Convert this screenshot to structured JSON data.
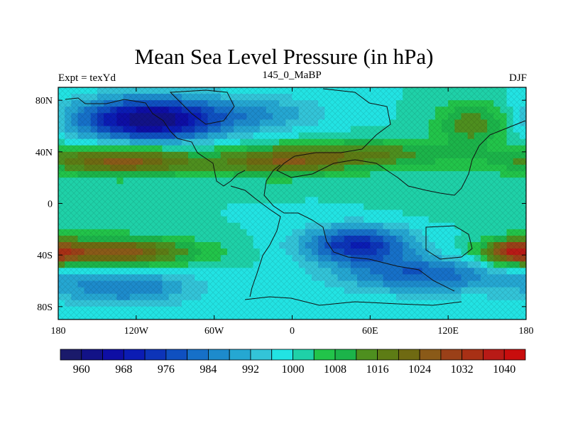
{
  "chart_data": {
    "type": "heatmap",
    "title": "Mean Sea Level Pressure (in hPa)",
    "subtitle_left": "Expt = texYd",
    "subtitle_center": "145_0_MaBP",
    "subtitle_right": "DJF",
    "x_ticks": [
      "180",
      "120W",
      "60W",
      "0",
      "60E",
      "120E",
      "180"
    ],
    "x_tick_values": [
      -180,
      -120,
      -60,
      0,
      60,
      120,
      180
    ],
    "y_ticks": [
      "80N",
      "40N",
      "0",
      "40S",
      "80S"
    ],
    "y_tick_values": [
      80,
      40,
      0,
      -40,
      -80
    ],
    "xlim": [
      -180,
      180
    ],
    "ylim": [
      -90,
      90
    ],
    "colorbar": {
      "levels": [
        956,
        960,
        964,
        968,
        972,
        976,
        980,
        984,
        988,
        992,
        996,
        1000,
        1004,
        1008,
        1012,
        1016,
        1020,
        1024,
        1028,
        1032,
        1036,
        1040,
        1044
      ],
      "labels": [
        "960",
        "968",
        "976",
        "984",
        "992",
        "1000",
        "1008",
        "1016",
        "1024",
        "1032",
        "1040"
      ],
      "label_values": [
        960,
        968,
        976,
        984,
        992,
        1000,
        1008,
        1016,
        1024,
        1032,
        1040
      ],
      "colors": [
        "#1a1a6b",
        "#121287",
        "#0e0ea4",
        "#0b1cb4",
        "#0d34b8",
        "#0f50c0",
        "#1670c8",
        "#1d8bcc",
        "#25a7d2",
        "#33c4d8",
        "#22e3e3",
        "#1fd1a8",
        "#22c44a",
        "#1cb44a",
        "#4e8f1f",
        "#5d7c15",
        "#6f6a12",
        "#8a5a18",
        "#9a4018",
        "#a83015",
        "#b81a16",
        "#c80d0d"
      ]
    },
    "centers": [
      {
        "lon": -110,
        "lat": 65,
        "value": 960,
        "sx": 40,
        "sy": 12
      },
      {
        "lon": -20,
        "lat": 70,
        "value": 990,
        "sx": 35,
        "sy": 10
      },
      {
        "lon": 140,
        "lat": 62,
        "value": 1016,
        "sx": 20,
        "sy": 12
      },
      {
        "lon": -130,
        "lat": 33,
        "value": 1026,
        "sx": 45,
        "sy": 8
      },
      {
        "lon": -10,
        "lat": 32,
        "value": 1020,
        "sx": 35,
        "sy": 8
      },
      {
        "lon": 60,
        "lat": 38,
        "value": 1016,
        "sx": 45,
        "sy": 8
      },
      {
        "lon": -140,
        "lat": -38,
        "value": 1028,
        "sx": 45,
        "sy": 8
      },
      {
        "lon": 170,
        "lat": -38,
        "value": 1024,
        "sx": 15,
        "sy": 7
      },
      {
        "lon": 50,
        "lat": -32,
        "value": 972,
        "sx": 30,
        "sy": 10
      },
      {
        "lon": 100,
        "lat": -55,
        "value": 980,
        "sx": 45,
        "sy": 10
      },
      {
        "lon": -130,
        "lat": -65,
        "value": 984,
        "sx": 40,
        "sy": 10
      },
      {
        "lon": 130,
        "lat": 5,
        "value": 1004,
        "sx": 35,
        "sy": 10
      }
    ],
    "base_value": 1000
  }
}
